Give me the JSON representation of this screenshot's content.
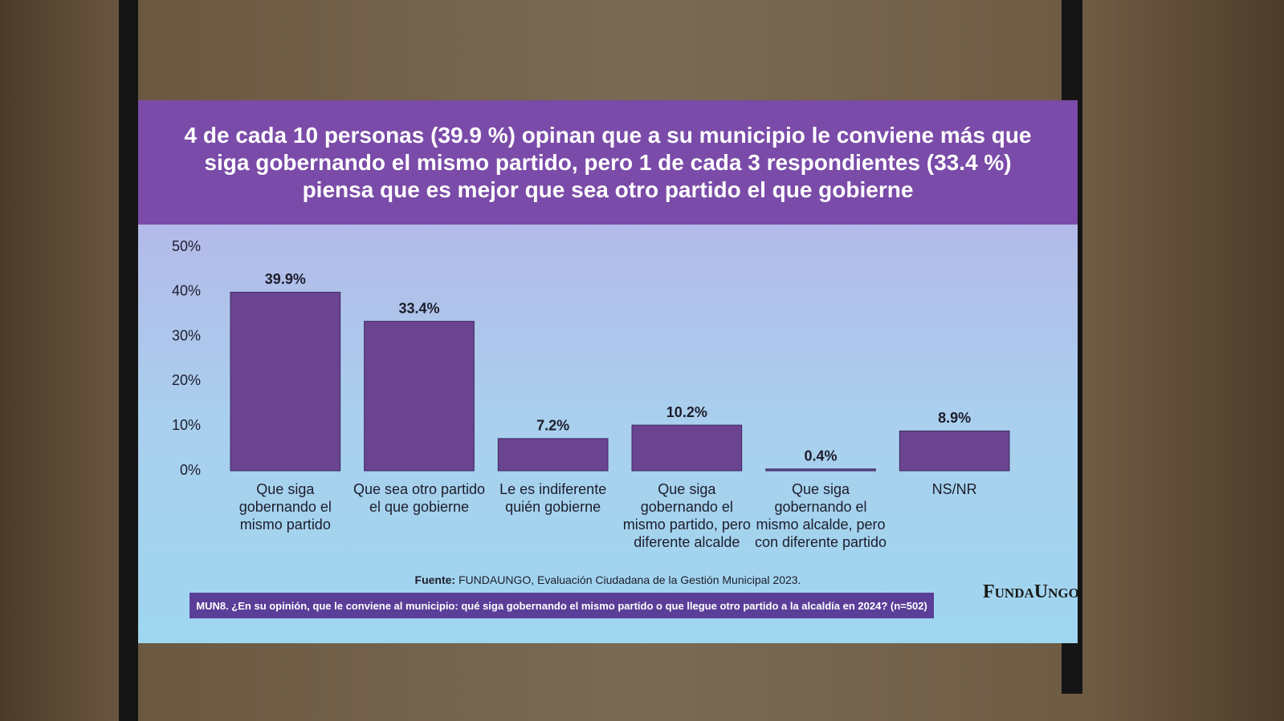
{
  "chart_data": {
    "type": "bar",
    "title": "4 de cada 10 personas (39.9 %) opinan que a su municipio le conviene más que siga gobernando el mismo partido, pero 1 de cada 3 respondientes (33.4 %) piensa que es mejor que sea otro partido el que gobierne",
    "categories": [
      "Que siga gobernando el mismo partido",
      "Que sea otro partido el que gobierne",
      "Le es indiferente quién gobierne",
      "Que siga gobernando el mismo partido, pero diferente alcalde",
      "Que siga gobernando el mismo alcalde, pero con diferente partido",
      "NS/NR"
    ],
    "values": [
      39.9,
      33.4,
      7.2,
      10.2,
      0.4,
      8.9
    ],
    "value_labels": [
      "39.9%",
      "33.4%",
      "7.2%",
      "10.2%",
      "0.4%",
      "8.9%"
    ],
    "color": "#6a4490",
    "ylim": [
      0,
      50
    ],
    "yticks": [
      {
        "value": 0,
        "label": "0%"
      },
      {
        "value": 10,
        "label": "10%"
      },
      {
        "value": 20,
        "label": "20%"
      },
      {
        "value": 30,
        "label": "30%"
      },
      {
        "value": 40,
        "label": "40%"
      },
      {
        "value": 50,
        "label": "50%"
      }
    ],
    "grid": false,
    "source_label": "Fuente:",
    "source_text": "FUNDAUNGO, Evaluación Ciudadana de la Gestión Municipal 2023.",
    "note": "MUN8. ¿En su opinión, que le conviene al municipio: qué siga gobernando el mismo partido o que llegue otro partido a la alcaldía en 2024? (n=502)",
    "logo": "FundaUngo"
  }
}
